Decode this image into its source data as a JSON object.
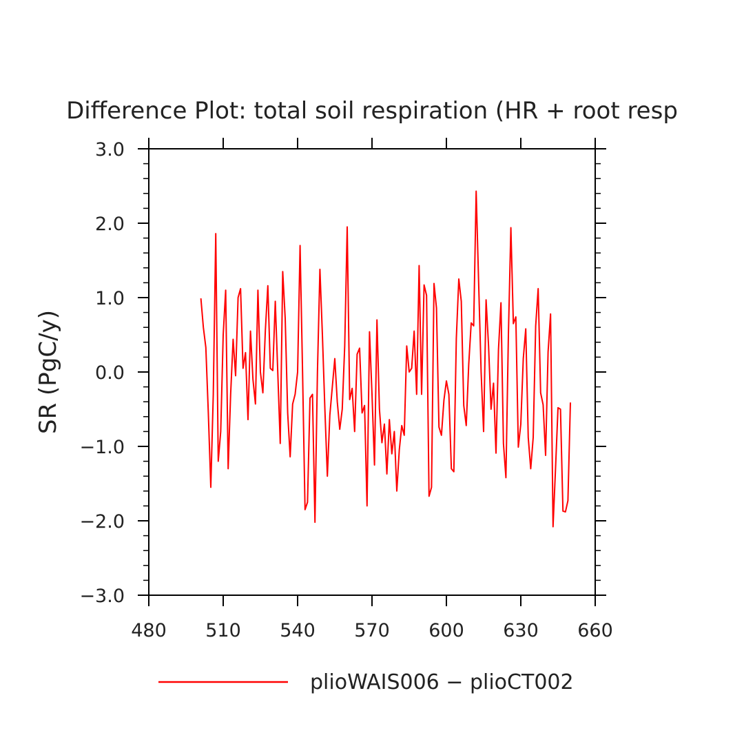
{
  "chart_data": {
    "type": "line",
    "title": "Difference Plot: total soil respiration (HR + root resp",
    "xlabel": "",
    "ylabel": "SR  (PgC/y)",
    "xlim": [
      480,
      660
    ],
    "ylim": [
      -3.0,
      3.0
    ],
    "x_ticks": [
      480,
      510,
      540,
      570,
      600,
      630,
      660
    ],
    "x_tick_labels": [
      "480",
      "510",
      "540",
      "570",
      "600",
      "630",
      "660"
    ],
    "y_ticks": [
      -3.0,
      -2.0,
      -1.0,
      0.0,
      1.0,
      2.0,
      3.0
    ],
    "y_tick_labels": [
      "−3.0",
      "−2.0",
      "−1.0",
      "0.0",
      "1.0",
      "2.0",
      "3.0"
    ],
    "grid": false,
    "legend_position": "bottom",
    "series": [
      {
        "name": "plioWAIS006 − plioCT002",
        "color": "#ff0000",
        "x_start": 501,
        "x_step": 1,
        "values": [
          0.99,
          0.6,
          0.33,
          -0.55,
          -1.55,
          -0.3,
          1.86,
          -1.2,
          -0.8,
          0.5,
          1.1,
          -1.3,
          -0.3,
          0.44,
          -0.05,
          1.0,
          1.12,
          0.05,
          0.26,
          -0.64,
          0.55,
          -0.1,
          -0.43,
          1.1,
          0.0,
          -0.28,
          0.56,
          1.16,
          0.05,
          0.02,
          0.95,
          0.0,
          -0.96,
          1.35,
          0.72,
          -0.55,
          -1.14,
          -0.43,
          -0.3,
          0.0,
          1.7,
          0.0,
          -1.85,
          -1.75,
          -0.35,
          -0.3,
          -2.02,
          0.0,
          1.38,
          0.5,
          -0.5,
          -1.4,
          -0.58,
          -0.2,
          0.18,
          -0.4,
          -0.77,
          -0.5,
          0.35,
          1.95,
          -0.37,
          -0.22,
          -0.8,
          0.24,
          0.32,
          -0.55,
          -0.45,
          -1.8,
          0.54,
          -0.3,
          -1.25,
          0.7,
          -0.5,
          -0.95,
          -0.7,
          -1.37,
          -0.64,
          -1.1,
          -0.8,
          -1.6,
          -1.05,
          -0.72,
          -0.85,
          0.35,
          0.0,
          0.05,
          0.55,
          -0.3,
          1.43,
          -0.3,
          1.17,
          1.03,
          -1.67,
          -1.55,
          1.19,
          0.86,
          -0.74,
          -0.85,
          -0.38,
          -0.12,
          -0.3,
          -1.3,
          -1.34,
          0.45,
          1.25,
          0.95,
          -0.45,
          -0.72,
          0.1,
          0.66,
          0.62,
          2.43,
          1.2,
          0.0,
          -0.8,
          0.97,
          0.35,
          -0.5,
          -0.15,
          -1.09,
          0.3,
          0.93,
          -0.96,
          -1.42,
          0.5,
          1.94,
          0.65,
          0.74,
          -1.01,
          -0.7,
          0.18,
          0.58,
          -0.88,
          -1.3,
          -0.88,
          0.62,
          1.12,
          -0.28,
          -0.44,
          -1.12,
          0.27,
          0.78,
          -2.08,
          -1.3,
          -0.48,
          -0.5,
          -1.87,
          -1.88,
          -1.73,
          -0.41
        ]
      }
    ]
  }
}
